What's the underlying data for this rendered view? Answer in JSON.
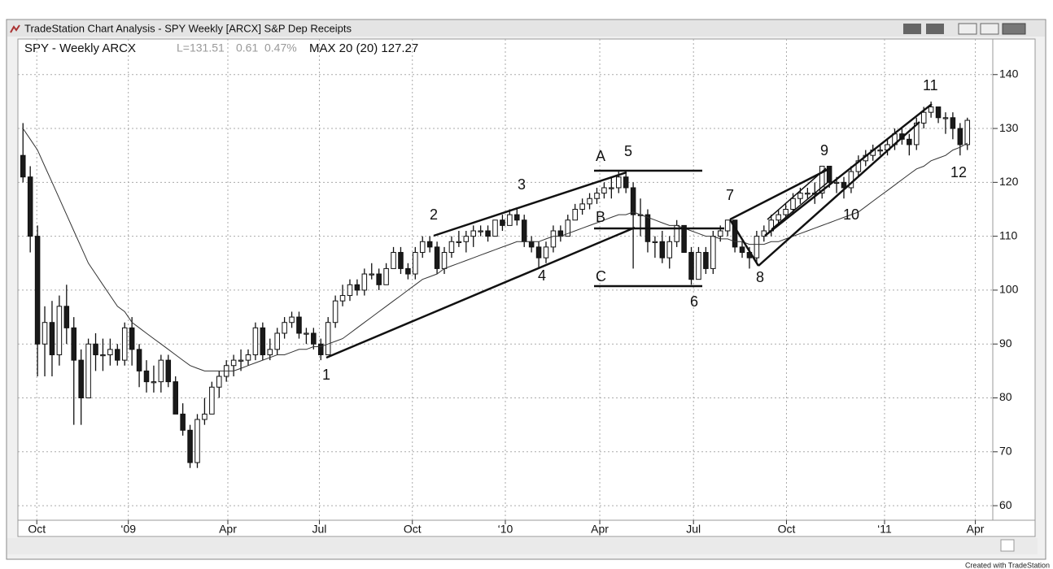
{
  "window_title": "TradeStation Chart Analysis - SPY Weekly [ARCX] S&P Dep Receipts",
  "footer": "Created with TradeStation",
  "chart_data": {
    "type": "candlestick",
    "title": "SPY - Weekly ARCX",
    "last_label": "L=131.51",
    "change": "0.61",
    "change_pct": "0.47%",
    "grid": true,
    "up_color": "#ffffff",
    "down_color": "#1a1a1a",
    "open": [
      125,
      121,
      110,
      90,
      94,
      88,
      97,
      93,
      87,
      80,
      90,
      88,
      88,
      89,
      87,
      93,
      89,
      85,
      83,
      83,
      87,
      83,
      77,
      74,
      68,
      76,
      77,
      82,
      84,
      86,
      87,
      87,
      88,
      93,
      88,
      89,
      92,
      94,
      95,
      92,
      92,
      90,
      88,
      94,
      98,
      99,
      101,
      100,
      103,
      103,
      101,
      104,
      107,
      104,
      103,
      107,
      109,
      108,
      104,
      107,
      109,
      109,
      110,
      111,
      111,
      110,
      113,
      112,
      114,
      113,
      109,
      108,
      106,
      108,
      111,
      110,
      113,
      115,
      116,
      117,
      118,
      119,
      119,
      121,
      119,
      114,
      114,
      109,
      109,
      106,
      109,
      112,
      107,
      102,
      107,
      104,
      110,
      111,
      113,
      108,
      107,
      106,
      110,
      111,
      113,
      114,
      115,
      117,
      118,
      118,
      118,
      123,
      120,
      120,
      119,
      122,
      124,
      125,
      126,
      126,
      127,
      129,
      128,
      127,
      131,
      133,
      134,
      132,
      132,
      130,
      127
    ],
    "high": [
      131,
      123,
      112,
      97,
      98,
      99,
      101,
      95,
      89,
      91,
      92,
      91,
      91,
      90,
      94,
      95,
      90,
      87,
      86,
      88,
      88,
      84,
      79,
      75,
      77,
      80,
      83,
      85,
      87,
      88,
      89,
      89,
      94,
      94,
      91,
      93,
      95,
      96,
      96,
      93,
      93,
      91,
      95,
      99,
      101,
      102,
      102,
      104,
      105,
      104,
      105,
      108,
      108,
      105,
      108,
      110,
      110,
      109,
      108,
      110,
      111,
      111,
      112,
      112,
      112,
      113,
      114,
      115,
      115,
      114,
      110,
      109,
      109,
      112,
      112,
      114,
      116,
      117,
      118,
      119,
      120,
      121,
      122,
      122,
      120,
      117,
      115,
      110,
      111,
      110,
      113,
      112,
      108,
      108,
      108,
      111,
      112,
      113,
      113,
      109,
      108,
      111,
      112,
      114,
      115,
      116,
      118,
      119,
      119,
      120,
      123,
      123,
      121,
      121,
      123,
      125,
      126,
      127,
      127,
      128,
      130,
      130,
      129,
      132,
      134,
      135,
      134,
      133,
      133,
      131,
      132
    ],
    "low": [
      120,
      107,
      84,
      84,
      84,
      86,
      90,
      75,
      75,
      80,
      85,
      85,
      86,
      86,
      86,
      86,
      82,
      81,
      81,
      81,
      82,
      77,
      73,
      67,
      67,
      75,
      77,
      80,
      83,
      84,
      85,
      86,
      87,
      87,
      87,
      88,
      91,
      93,
      91,
      90,
      89,
      87,
      88,
      93,
      97,
      98,
      99,
      99,
      102,
      100,
      101,
      104,
      103,
      102,
      102,
      106,
      107,
      103,
      103,
      106,
      108,
      107,
      108,
      110,
      109,
      110,
      111,
      112,
      112,
      108,
      107,
      104,
      105,
      107,
      109,
      110,
      113,
      114,
      115,
      116,
      117,
      117,
      118,
      118,
      104,
      110,
      107,
      106,
      105,
      104,
      108,
      107,
      101,
      102,
      103,
      103,
      109,
      110,
      107,
      106,
      104,
      105,
      109,
      110,
      112,
      113,
      114,
      116,
      117,
      116,
      117,
      119,
      118,
      117,
      118,
      121,
      123,
      124,
      125,
      125,
      126,
      127,
      125,
      126,
      130,
      132,
      131,
      129,
      128,
      125,
      126
    ],
    "close": [
      121,
      110,
      90,
      94,
      88,
      97,
      93,
      87,
      80,
      90,
      88,
      88,
      89,
      87,
      93,
      89,
      85,
      83,
      83,
      87,
      83,
      77,
      74,
      68,
      76,
      77,
      82,
      84,
      86,
      87,
      87,
      88,
      93,
      88,
      89,
      92,
      94,
      95,
      92,
      92,
      90,
      88,
      94,
      98,
      99,
      101,
      100,
      103,
      103,
      101,
      104,
      107,
      104,
      103,
      107,
      109,
      108,
      104,
      107,
      109,
      109,
      110,
      111,
      111,
      110,
      113,
      112,
      114,
      113,
      109,
      108,
      106,
      108,
      111,
      110,
      113,
      115,
      116,
      117,
      118,
      119,
      119,
      121,
      119,
      114,
      114,
      109,
      109,
      106,
      109,
      112,
      107,
      102,
      107,
      104,
      110,
      111,
      113,
      108,
      107,
      106,
      110,
      111,
      113,
      114,
      115,
      117,
      118,
      118,
      118,
      123,
      120,
      120,
      119,
      122,
      124,
      125,
      126,
      126,
      127,
      129,
      128,
      127,
      131,
      133,
      134,
      132,
      132,
      130,
      127,
      131.51
    ],
    "ma": {
      "name": "MAX 20 (20) 127.27",
      "color": "#333333",
      "values": [
        130,
        128,
        126,
        123,
        120,
        117,
        114,
        111,
        108,
        105,
        103,
        101,
        99,
        97,
        96,
        94,
        93,
        92,
        91,
        90,
        89,
        88,
        87,
        86,
        85.5,
        85,
        85,
        85,
        85,
        85,
        85.5,
        86,
        86.5,
        87,
        87.5,
        88,
        88,
        88.5,
        89,
        89,
        89.5,
        89.5,
        90,
        90.5,
        91,
        92,
        93,
        94,
        95,
        96,
        97,
        98,
        99,
        100,
        101,
        102,
        102.5,
        103,
        104,
        104.5,
        105,
        105.5,
        106,
        106.5,
        107,
        107.5,
        108,
        108.5,
        109,
        109,
        109,
        109,
        109.5,
        110,
        110,
        110.5,
        111,
        111.5,
        112,
        112.5,
        113,
        113.5,
        114,
        114,
        114.5,
        114,
        113.5,
        113,
        112.5,
        112,
        112,
        111.5,
        111,
        110.5,
        110,
        110,
        109.5,
        109.5,
        109,
        109,
        108.5,
        108.5,
        108.5,
        109,
        109,
        109.5,
        110,
        110.5,
        111,
        111.5,
        112,
        112.5,
        113,
        113.5,
        114,
        114.5,
        115.5,
        116.5,
        117.5,
        118.5,
        119.5,
        120.5,
        121.5,
        122.5,
        123,
        124,
        124.5,
        125,
        126,
        126.5,
        127.27
      ]
    },
    "xlim": [
      -0.7,
      133.5
    ],
    "xticks": [
      {
        "value": 1.9,
        "label": "Oct"
      },
      {
        "value": 14.5,
        "label": "‘09"
      },
      {
        "value": 28.2,
        "label": "Apr"
      },
      {
        "value": 40.8,
        "label": "Jul"
      },
      {
        "value": 53.6,
        "label": "Oct"
      },
      {
        "value": 66.4,
        "label": "‘10"
      },
      {
        "value": 79.4,
        "label": "Apr"
      },
      {
        "value": 92.3,
        "label": "Jul"
      },
      {
        "value": 105.1,
        "label": "Oct"
      },
      {
        "value": 118.6,
        "label": "‘11"
      },
      {
        "value": 131.1,
        "label": "Apr"
      }
    ],
    "ylim": [
      57.3,
      146.6
    ],
    "yticks": [
      60,
      70,
      80,
      90,
      100,
      110,
      120,
      130,
      140
    ],
    "annotations": [
      "1",
      "2",
      "3",
      "4",
      "A",
      "5",
      "B",
      "C",
      "6",
      "7",
      "8",
      "9",
      "10",
      "11",
      "12"
    ]
  }
}
